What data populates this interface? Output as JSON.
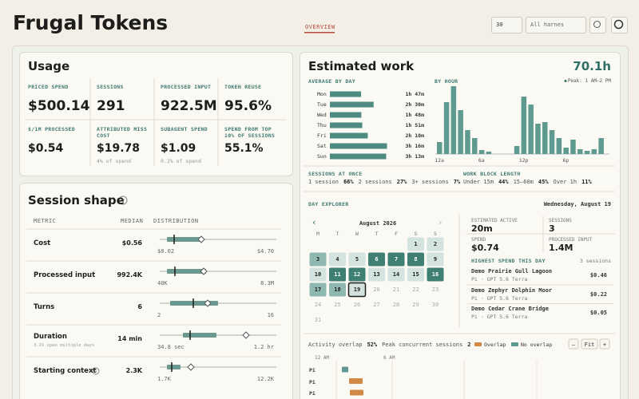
{
  "header": {
    "title": "Frugal Tokens",
    "tab": "OVERVIEW",
    "range": "30",
    "harness": "All harnes"
  },
  "usage": {
    "title": "Usage",
    "metrics": [
      {
        "label": "PRICED SPEND",
        "value": "$500.14"
      },
      {
        "label": "SESSIONS",
        "value": "291"
      },
      {
        "label": "PROCESSED INPUT",
        "value": "922.5M"
      },
      {
        "label": "TOKEN REUSE",
        "value": "95.6%"
      },
      {
        "label": "$/1M PROCESSED",
        "value": "$0.54"
      },
      {
        "label": "ATTRIBUTED MISS COST",
        "value": "$19.78",
        "note": "4% of spend"
      },
      {
        "label": "SUBAGENT SPEND",
        "value": "$1.09",
        "note": "0.2% of spend"
      },
      {
        "label": "SPEND FROM TOP 10% OF SESSIONS",
        "value": "55.1%"
      }
    ]
  },
  "session_shape": {
    "title": "Session shape",
    "help": "?",
    "columns": [
      "METRIC",
      "MEDIAN",
      "DISTRIBUTION"
    ],
    "rows": [
      {
        "metric": "Cost",
        "median": "$0.56",
        "min": "$0.02",
        "max": "$4.70"
      },
      {
        "metric": "Processed input",
        "median": "992.4K",
        "min": "40K",
        "max": "8.3M"
      },
      {
        "metric": "Turns",
        "median": "6",
        "min": "2",
        "max": "16"
      },
      {
        "metric": "Duration",
        "note": "3.1% span multiple days",
        "median": "14 min",
        "min": "34.8 sec",
        "max": "1.2 hr"
      },
      {
        "metric": "Starting context",
        "info": "i",
        "median": "2.3K",
        "min": "1.7K",
        "max": "12.2K"
      }
    ]
  },
  "work": {
    "title": "Estimated work",
    "total": "70.1h",
    "by_day": {
      "type": "bar",
      "title": "AVERAGE BY DAY",
      "categories": [
        "Mon",
        "Tue",
        "Wed",
        "Thu",
        "Fri",
        "Sat",
        "Sun"
      ],
      "values": [
        107,
        150,
        108,
        111,
        130,
        196,
        193
      ],
      "value_labels": [
        "1h 47m",
        "2h 30m",
        "1h 48m",
        "1h 51m",
        "2h 10m",
        "3h 16m",
        "3h 13m"
      ],
      "color": "#4d8b80"
    },
    "by_hour": {
      "type": "bar",
      "title": "BY HOUR",
      "peak": "Peak: 1 AM–2 PM",
      "categories": [
        "12a",
        null,
        null,
        null,
        null,
        null,
        "6a",
        null,
        null,
        null,
        null,
        null,
        "12p",
        null,
        null,
        null,
        null,
        null,
        "6p",
        null,
        null,
        null,
        null,
        null
      ],
      "values": [
        15,
        65,
        85,
        55,
        30,
        20,
        5,
        3,
        0,
        0,
        0,
        10,
        72,
        62,
        38,
        40,
        30,
        20,
        8,
        18,
        6,
        4,
        6,
        20
      ],
      "color": "#5e9a8f"
    },
    "sessions_at_once": {
      "title": "SESSIONS AT ONCE",
      "items": [
        {
          "label": "1 session",
          "value": "66%"
        },
        {
          "label": "2 sessions",
          "value": "27%"
        },
        {
          "label": "3+ sessions",
          "value": "7%"
        }
      ]
    },
    "work_block": {
      "title": "WORK BLOCK LENGTH",
      "items": [
        {
          "label": "Under 15m",
          "value": "44%"
        },
        {
          "label": "15–60m",
          "value": "45%"
        },
        {
          "label": "Over 1h",
          "value": "11%"
        }
      ]
    }
  },
  "day_explorer": {
    "title": "DAY EXPLORER",
    "selected": "Wednesday, August 19",
    "month": "August 2026",
    "prev": "‹",
    "next": "›",
    "weekdays": [
      "M",
      "T",
      "W",
      "T",
      "F",
      "S",
      "S"
    ],
    "days": [
      1,
      2,
      3,
      4,
      5,
      6,
      7,
      8,
      9,
      10,
      11,
      12,
      13,
      14,
      15,
      16,
      17,
      18,
      19,
      20,
      21,
      22,
      23,
      24,
      25,
      26,
      27,
      28,
      29,
      30,
      31
    ],
    "activity": [
      1,
      1,
      2,
      1,
      1,
      3,
      3,
      3,
      1,
      1,
      3,
      3,
      1,
      1,
      1,
      3,
      2,
      2,
      1,
      0,
      0,
      0,
      0,
      0,
      0,
      0,
      0,
      0,
      0,
      0,
      0
    ],
    "selected_day": 19,
    "stats": [
      {
        "label": "ESTIMATED ACTIVE",
        "value": "20m"
      },
      {
        "label": "SESSIONS",
        "value": "3"
      },
      {
        "label": "SPEND",
        "value": "$0.74"
      },
      {
        "label": "PROCESSED INPUT",
        "value": "1.4M"
      }
    ],
    "top_title": "HIGHEST SPEND THIS DAY",
    "top_count": "3 sessions",
    "top": [
      {
        "name": "Demo Prairie Gull Lagoon",
        "model": "Pi · GPT 5.6 Terra",
        "spend": "$0.46"
      },
      {
        "name": "Demo Zephyr Dolphin Moor",
        "model": "Pi · GPT 5.6 Terra",
        "spend": "$0.22"
      },
      {
        "name": "Demo Cedar Crane Bridge",
        "model": "Pi · GPT 5.6 Terra",
        "spend": "$0.05"
      }
    ]
  },
  "overlap": {
    "label": "Activity overlap",
    "overlap": "52%",
    "peak_label": "Peak concurrent sessions",
    "peak": "2",
    "legend": [
      "Overlap",
      "No overlap"
    ],
    "zoom_out": "–",
    "fit": "Fit",
    "zoom_in": "+",
    "axis": [
      "12 AM",
      "6 AM"
    ],
    "rows": [
      "Pi",
      "Pi",
      "Pi"
    ]
  }
}
